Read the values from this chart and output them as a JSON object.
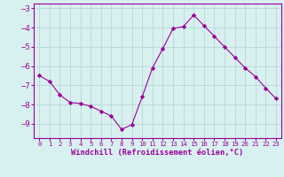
{
  "x": [
    0,
    1,
    2,
    3,
    4,
    5,
    6,
    7,
    8,
    9,
    10,
    11,
    12,
    13,
    14,
    15,
    16,
    17,
    18,
    19,
    20,
    21,
    22,
    23
  ],
  "y": [
    -6.5,
    -6.8,
    -7.5,
    -7.9,
    -7.95,
    -8.1,
    -8.35,
    -8.6,
    -9.3,
    -9.05,
    -7.6,
    -6.1,
    -5.1,
    -4.05,
    -3.95,
    -3.35,
    -3.9,
    -4.45,
    -5.0,
    -5.55,
    -6.1,
    -6.55,
    -7.15,
    -7.7
  ],
  "line_color": "#990099",
  "marker": "D",
  "marker_size": 2.2,
  "bg_color": "#d8f0f0",
  "grid_color": "#b8d8d8",
  "xlabel": "Windchill (Refroidissement éolien,°C)",
  "xlabel_color": "#990099",
  "tick_color": "#990099",
  "ylim": [
    -9.75,
    -2.75
  ],
  "yticks": [
    -9,
    -8,
    -7,
    -6,
    -5,
    -4,
    -3
  ],
  "xlim": [
    -0.5,
    23.5
  ],
  "xticks": [
    0,
    1,
    2,
    3,
    4,
    5,
    6,
    7,
    8,
    9,
    10,
    11,
    12,
    13,
    14,
    15,
    16,
    17,
    18,
    19,
    20,
    21,
    22,
    23
  ]
}
